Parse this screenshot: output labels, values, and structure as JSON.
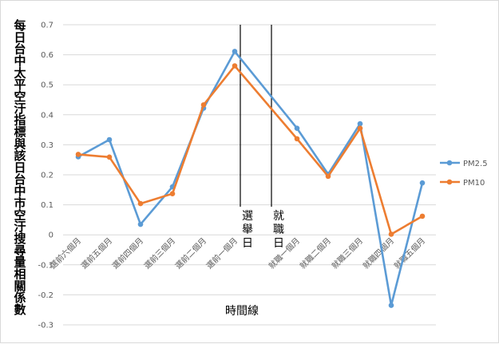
{
  "chart_data": {
    "type": "line",
    "title": "",
    "xlabel": "時間線",
    "ylabel": "每日台中太平空汙指標與該日台中市空汙搜尋量相關係數",
    "ylim": [
      -0.3,
      0.7
    ],
    "ytick_step": 0.1,
    "grid": true,
    "legend_position": "right",
    "categories": [
      "選前六個月",
      "選前五個月",
      "選前四個月",
      "選前三個月",
      "選前二個月",
      "選前一個月",
      "就職一個月",
      "就職二個月",
      "就職三個月",
      "就職四個月",
      "就職五個月"
    ],
    "series": [
      {
        "name": "PM2.5",
        "color": "#5b9bd5",
        "values": [
          0.26,
          0.317,
          0.035,
          0.16,
          0.422,
          0.611,
          0.355,
          0.202,
          0.37,
          -0.235,
          0.173
        ]
      },
      {
        "name": "PM10",
        "color": "#ed7d31",
        "values": [
          0.268,
          0.259,
          0.104,
          0.137,
          0.433,
          0.563,
          0.32,
          0.195,
          0.355,
          0.002,
          0.062
        ]
      }
    ],
    "annotations": [
      "選舉日",
      "就職日"
    ]
  }
}
